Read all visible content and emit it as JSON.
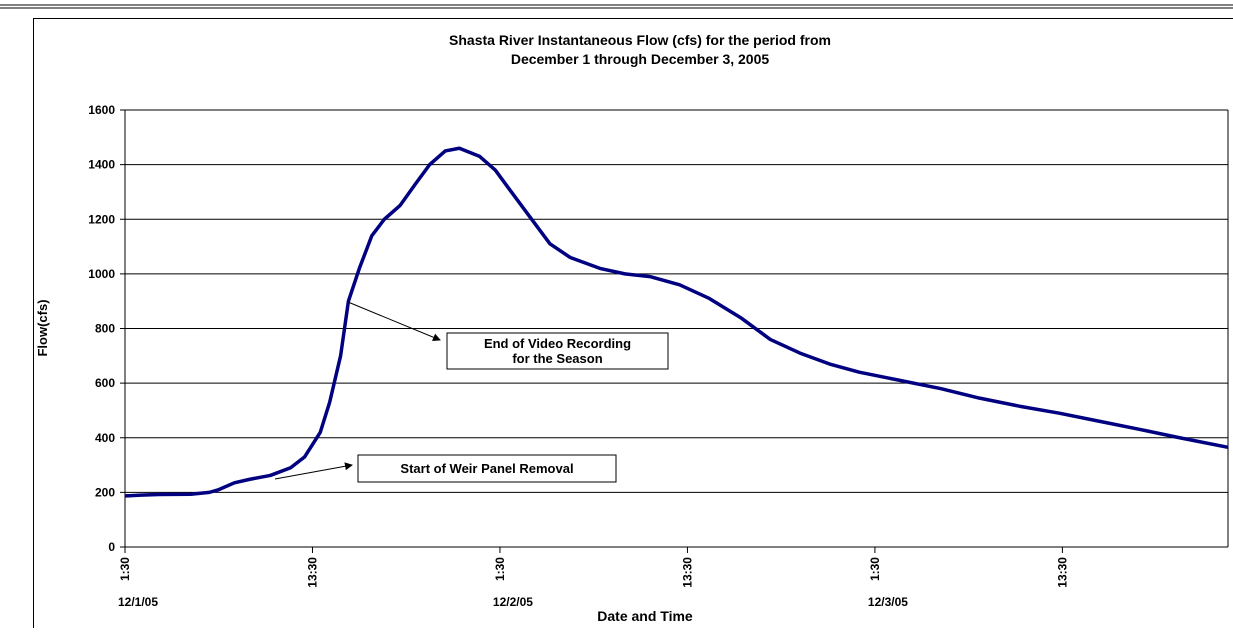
{
  "chart_data": {
    "type": "line",
    "title": [
      "Shasta River Instantaneous Flow (cfs) for the period from",
      "December 1 through December 3, 2005"
    ],
    "x_label": "Date and Time",
    "y_label": "Flow(cfs)",
    "xlim": [
      0,
      70.6
    ],
    "ylim": [
      0,
      1600
    ],
    "yticks": [
      0,
      200,
      400,
      600,
      800,
      1000,
      1200,
      1400,
      1600
    ],
    "xticks": [
      {
        "value": 0,
        "label": "1:30"
      },
      {
        "value": 12,
        "label": "13:30"
      },
      {
        "value": 24,
        "label": "1:30"
      },
      {
        "value": 36,
        "label": "13:30"
      },
      {
        "value": 48,
        "label": "1:30"
      },
      {
        "value": 60,
        "label": "13:30"
      }
    ],
    "x_date_labels": [
      {
        "value": 0,
        "label": "12/1/05"
      },
      {
        "value": 24,
        "label": "12/2/05"
      },
      {
        "value": 48,
        "label": "12/3/05"
      }
    ],
    "grid": true,
    "series": [
      {
        "name": "Flow",
        "color": "#000080",
        "x": [
          0,
          1,
          2.2,
          4.2,
          5.4,
          6,
          7,
          8,
          9.3,
          10.6,
          11.5,
          12.5,
          13.1,
          13.8,
          14.3,
          15,
          15.8,
          16.6,
          17.6,
          18.6,
          19.5,
          20.5,
          21.4,
          22.7,
          23.7,
          24.6,
          25.9,
          27.2,
          28.5,
          30.4,
          32,
          33.6,
          35.5,
          37.4,
          39.4,
          41.3,
          43.2,
          45.1,
          47,
          49.6,
          52.2,
          54.7,
          57.3,
          59.8,
          62.4,
          65,
          67.5,
          70.6
        ],
        "values": [
          187,
          190,
          192,
          193,
          200,
          210,
          235,
          248,
          262,
          290,
          330,
          420,
          530,
          700,
          900,
          1020,
          1140,
          1200,
          1250,
          1330,
          1400,
          1450,
          1460,
          1430,
          1380,
          1310,
          1210,
          1110,
          1060,
          1020,
          1000,
          990,
          960,
          910,
          840,
          760,
          710,
          670,
          640,
          610,
          580,
          545,
          515,
          490,
          460,
          430,
          400,
          365
        ]
      }
    ],
    "annotations": [
      {
        "lines": [
          "Start of Weir Panel Removal"
        ]
      },
      {
        "lines": [
          "End of Video Recording",
          "for the Season"
        ]
      }
    ]
  }
}
